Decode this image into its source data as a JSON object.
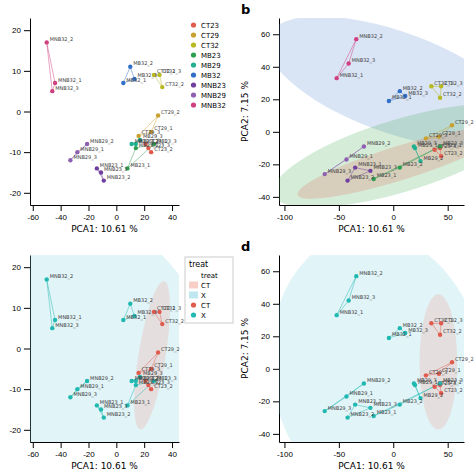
{
  "chart_data": [
    {
      "type": "scatter",
      "xlabel": "PCA1: 10.61 %",
      "xlim": [
        -62,
        45
      ],
      "ylim": [
        -23,
        23
      ],
      "xticks": [
        -60,
        -40,
        -20,
        0,
        20,
        40
      ],
      "yticks": [
        -20,
        -10,
        0,
        10,
        20
      ],
      "grid": false,
      "legend": "right",
      "series": [
        {
          "name": "CT23",
          "color": "#e05a4e",
          "x": [
            21,
            25,
            23
          ],
          "values": [
            -8,
            -10,
            -9
          ],
          "labels": [
            "CT23_1",
            "CT23_2",
            "CT23_3"
          ]
        },
        {
          "name": "CT29",
          "color": "#c8a030",
          "x": [
            25,
            30,
            16
          ],
          "values": [
            -5,
            -1,
            -6
          ],
          "labels": [
            "CT29_1",
            "CT29_2",
            "CT29_3"
          ]
        },
        {
          "name": "CT32",
          "color": "#b8b820",
          "x": [
            27,
            33,
            31
          ],
          "values": [
            9,
            6,
            9
          ],
          "labels": [
            "CT32_1",
            "CT32_2",
            "CT32_3"
          ]
        },
        {
          "name": "MB23",
          "color": "#2e9e50",
          "x": [
            8,
            14,
            27
          ],
          "values": [
            -14,
            -9,
            -8
          ],
          "labels": [
            "MB23_1",
            "MB23_2",
            "MB23_3"
          ]
        },
        {
          "name": "MB29",
          "color": "#20b090",
          "x": [
            11,
            14,
            17
          ],
          "values": [
            -8,
            -8,
            -7
          ],
          "labels": [
            "MB29_1",
            "MB29_2",
            "MB29_3"
          ]
        },
        {
          "name": "MB32",
          "color": "#3070c8",
          "x": [
            5,
            10,
            13
          ],
          "values": [
            7,
            11,
            8
          ],
          "labels": [
            "MB32_1",
            "MB32_2",
            "MB32_3"
          ]
        },
        {
          "name": "MNB23",
          "color": "#7040a0",
          "x": [
            -14,
            -9,
            -11
          ],
          "values": [
            -14,
            -17,
            -15
          ],
          "labels": [
            "MNB23_1",
            "MNB23_2",
            "MNB23_3"
          ]
        },
        {
          "name": "MNB29",
          "color": "#9060b0",
          "x": [
            -28,
            -21,
            -33
          ],
          "values": [
            -10,
            -8,
            -12
          ],
          "labels": [
            "MNB29_1",
            "MNB29_2",
            "MNB29_3"
          ]
        },
        {
          "name": "MNB32",
          "color": "#d04080",
          "x": [
            -50,
            -44,
            -46
          ],
          "values": [
            17,
            7,
            5
          ],
          "labels": [
            "MNB32_2",
            "MNB32_1",
            "MNB32_3"
          ]
        }
      ]
    },
    {
      "type": "scatter",
      "title": "b",
      "xlabel": "PCA1: 10.61 %",
      "ylabel": "PCA2: 7.15 %",
      "xlim": [
        -105,
        65
      ],
      "ylim": [
        -45,
        70
      ],
      "xticks": [
        -100,
        -50,
        0,
        50
      ],
      "yticks": [
        -40,
        -20,
        0,
        20,
        40,
        60
      ],
      "grid": false,
      "ellipses": [
        {
          "color": "#6090d0",
          "series": [
            2,
            5,
            8
          ]
        },
        {
          "color": "#50b060",
          "series": [
            1,
            4,
            7,
            0,
            3,
            6
          ]
        },
        {
          "color": "#e07060",
          "series": [
            0,
            3,
            6
          ]
        }
      ],
      "series": [
        {
          "color": "#e05a4e",
          "x": [
            43,
            44,
            38
          ],
          "values": [
            -10,
            -15,
            -11
          ],
          "labels": [
            "CT23_1",
            "CT23_2",
            "CT23_3"
          ]
        },
        {
          "color": "#c8a030",
          "x": [
            54,
            30,
            42
          ],
          "values": [
            4,
            -4,
            -3
          ],
          "labels": [
            "CT29_2",
            "CT29_3",
            "CT29_1"
          ]
        },
        {
          "color": "#b8b820",
          "x": [
            35,
            44,
            43
          ],
          "values": [
            28,
            28,
            21
          ],
          "labels": [
            "CT32_1",
            "CT32_3",
            "CT32_2"
          ]
        },
        {
          "color": "#2e9e50",
          "x": [
            -18,
            6,
            43
          ],
          "values": [
            -29,
            -22,
            -9
          ],
          "labels": [
            "MB23_1",
            "MB23_2",
            "MB23_3"
          ]
        },
        {
          "color": "#20b090",
          "x": [
            20,
            25,
            19
          ],
          "values": [
            -10,
            -18,
            -9
          ],
          "labels": [
            "MB29_1",
            "MB29_2",
            "MB29_3"
          ]
        },
        {
          "color": "#3070c8",
          "x": [
            6,
            -4,
            11
          ],
          "values": [
            25,
            19,
            22
          ],
          "labels": [
            "MB32_2",
            "MB32_1",
            "MB32_3"
          ]
        },
        {
          "color": "#7040a0",
          "x": [
            -35,
            -42,
            -21
          ],
          "values": [
            -22,
            -30,
            -24
          ],
          "labels": [
            "MNB23_1",
            "MNB23_2",
            "MNB23_3"
          ]
        },
        {
          "color": "#9060b0",
          "x": [
            -43,
            -27,
            -63
          ],
          "values": [
            -17,
            -9,
            -26
          ],
          "labels": [
            "MNB29_1",
            "MNB29_2",
            "MNB29_3"
          ]
        },
        {
          "color": "#d04080",
          "x": [
            -34,
            -52,
            -41
          ],
          "values": [
            57,
            33,
            42
          ],
          "labels": [
            "MNB32_2",
            "MNB32_1",
            "MNB32_3"
          ]
        }
      ]
    },
    {
      "type": "scatter",
      "xlabel": "PCA1: 10.61 %",
      "xlim": [
        -62,
        45
      ],
      "ylim": [
        -23,
        23
      ],
      "xticks": [
        -60,
        -40,
        -20,
        0,
        20,
        40
      ],
      "yticks": [
        -20,
        -10,
        0,
        10,
        20
      ],
      "grid": false,
      "legend": "right",
      "legend_title": "treat",
      "legend_entries": [
        {
          "label": "treat"
        },
        {
          "label": "CT",
          "color": "#f0a090",
          "marker": "square"
        },
        {
          "label": "X",
          "color": "#80d0e0",
          "marker": "square"
        },
        {
          "label": "CT",
          "color": "#e05a4e",
          "marker": "circle"
        },
        {
          "label": "X",
          "color": "#20b8b0",
          "marker": "circle"
        }
      ],
      "ellipses": [
        {
          "color": "#80d0e0",
          "series": [
            1
          ]
        },
        {
          "color": "#f0a090",
          "series": [
            0
          ]
        }
      ],
      "series": [
        {
          "color": "#e05a4e",
          "x": [
            27,
            33,
            31,
            25,
            30,
            16,
            21,
            25,
            23
          ],
          "values": [
            9,
            6,
            9,
            -5,
            -1,
            -6,
            -8,
            -10,
            -9
          ],
          "labels": [
            "CT32_1",
            "CT32_2",
            "CT32_3",
            "CT29_1",
            "CT29_2",
            "CT29_3",
            "CT23_1",
            "CT23_2",
            "CT23_3"
          ]
        },
        {
          "color": "#20b8b0",
          "x": [
            -50,
            -44,
            -46,
            -28,
            -21,
            -33,
            -14,
            -9,
            -11,
            5,
            10,
            13,
            11,
            14,
            17,
            8,
            14,
            27
          ],
          "values": [
            17,
            7,
            5,
            -10,
            -8,
            -12,
            -14,
            -17,
            -15,
            7,
            11,
            8,
            -8,
            -8,
            -7,
            -14,
            -9,
            -8
          ],
          "labels": [
            "MNB32_2",
            "MNB32_1",
            "MNB32_3",
            "MNB29_1",
            "MNB29_2",
            "MNB29_3",
            "MNB23_1",
            "MNB23_2",
            "MNB23_3",
            "MB32_1",
            "MB32_2",
            "MB32_3",
            "MB29_1",
            "MB29_2",
            "MB29_3",
            "MB23_1",
            "MB23_2",
            "MB23_3"
          ]
        }
      ]
    },
    {
      "type": "scatter",
      "title": "d",
      "xlabel": "PCA1: 10.61 %",
      "ylabel": "PCA2: 7.15 %",
      "xlim": [
        -105,
        65
      ],
      "ylim": [
        -45,
        70
      ],
      "xticks": [
        -100,
        -50,
        0,
        50
      ],
      "yticks": [
        -40,
        -20,
        0,
        20,
        40,
        60
      ],
      "grid": false,
      "ellipses": [
        {
          "color": "#80d0e0",
          "series": [
            1
          ]
        },
        {
          "color": "#f0a090",
          "series": [
            0
          ]
        }
      ],
      "series": [
        {
          "color": "#e05a4e",
          "x": [
            35,
            44,
            43,
            54,
            30,
            42,
            43,
            44,
            38
          ],
          "values": [
            28,
            28,
            21,
            4,
            -4,
            -3,
            -10,
            -15,
            -11
          ],
          "labels": [
            "CT32_1",
            "CT32_3",
            "CT32_2",
            "CT29_2",
            "CT29_3",
            "CT29_1",
            "CT23_1",
            "CT23_2",
            "CT23_3"
          ]
        },
        {
          "color": "#20b8b0",
          "x": [
            -34,
            -52,
            -41,
            6,
            -4,
            11,
            -43,
            -27,
            -63,
            20,
            25,
            19,
            -35,
            -42,
            -21,
            -18,
            6,
            43
          ],
          "values": [
            57,
            33,
            42,
            25,
            19,
            22,
            -17,
            -9,
            -26,
            -10,
            -18,
            -9,
            -22,
            -30,
            -24,
            -29,
            -22,
            -9
          ],
          "labels": [
            "MNB32_2",
            "MNB32_1",
            "MNB32_3",
            "MB32_2",
            "MB32_1",
            "MB32_3",
            "MNB29_1",
            "MNB29_2",
            "MNB29_3",
            "MB29_1",
            "MB29_2",
            "MB29_3",
            "MNB23_1",
            "MNB23_2",
            "MNB23_3",
            "MB23_1",
            "MB23_2",
            "MB23_3"
          ]
        }
      ]
    }
  ]
}
